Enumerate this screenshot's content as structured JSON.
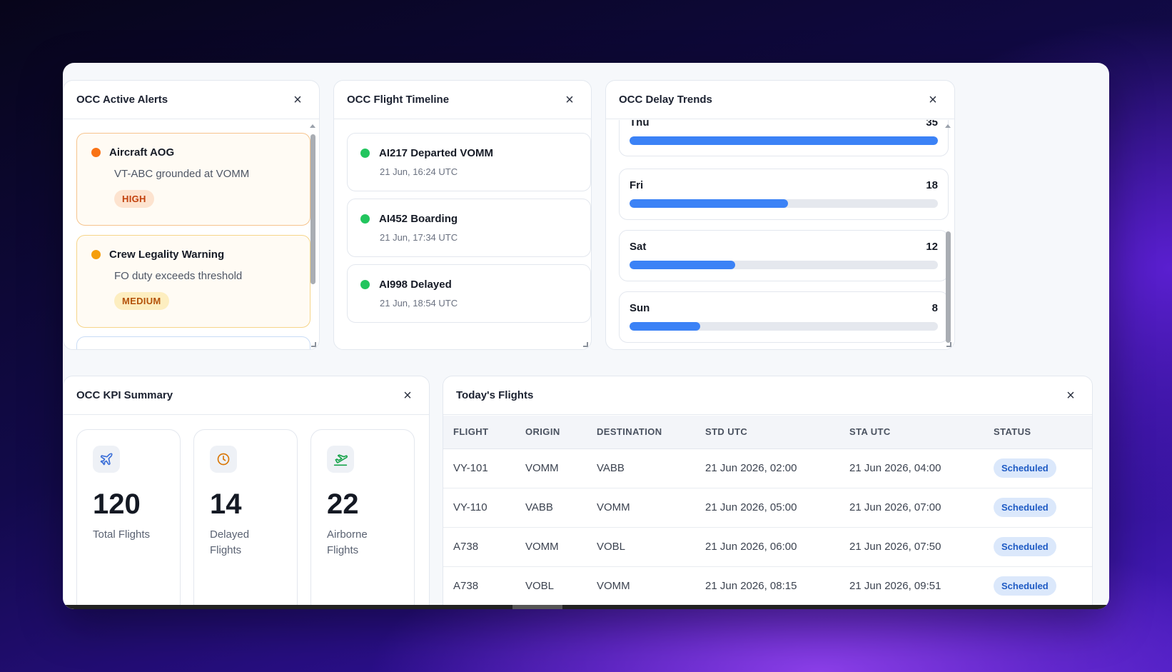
{
  "alerts_panel": {
    "title": "OCC Active Alerts",
    "items": [
      {
        "title": "Aircraft AOG",
        "subtitle": "VT-ABC grounded at VOMM",
        "severity": "HIGH",
        "dot_color": "#f97316",
        "badge_bg": "#fde3cf",
        "badge_color": "#c2410c"
      },
      {
        "title": "Crew Legality Warning",
        "subtitle": "FO duty exceeds threshold",
        "severity": "MEDIUM",
        "dot_color": "#f59e0b",
        "badge_bg": "#fdeec0",
        "badge_color": "#b45309"
      }
    ]
  },
  "timeline_panel": {
    "title": "OCC Flight Timeline",
    "items": [
      {
        "title": "AI217 Departed VOMM",
        "time": "21 Jun, 16:24 UTC"
      },
      {
        "title": "AI452 Boarding",
        "time": "21 Jun, 17:34 UTC"
      },
      {
        "title": "AI998 Delayed",
        "time": "21 Jun, 18:54 UTC"
      }
    ],
    "dot_color": "#22c55e"
  },
  "delay_panel": {
    "title": "OCC Delay Trends",
    "max": 35,
    "items": [
      {
        "day": "Thu",
        "value": 35
      },
      {
        "day": "Fri",
        "value": 18
      },
      {
        "day": "Sat",
        "value": 12
      },
      {
        "day": "Sun",
        "value": 8
      }
    ]
  },
  "kpi_panel": {
    "title": "OCC KPI Summary",
    "items": [
      {
        "value": "120",
        "label": "Total Flights",
        "icon": "plane-icon"
      },
      {
        "value": "14",
        "label": "Delayed Flights",
        "icon": "clock-icon"
      },
      {
        "value": "22",
        "label": "Airborne Flights",
        "icon": "takeoff-icon"
      }
    ]
  },
  "flights_panel": {
    "title": "Today's Flights",
    "columns": [
      "FLIGHT",
      "ORIGIN",
      "DESTINATION",
      "STD UTC",
      "STA UTC",
      "STATUS"
    ],
    "rows": [
      [
        "VY-101",
        "VOMM",
        "VABB",
        "21 Jun 2026, 02:00",
        "21 Jun 2026, 04:00",
        "Scheduled"
      ],
      [
        "VY-110",
        "VABB",
        "VOMM",
        "21 Jun 2026, 05:00",
        "21 Jun 2026, 07:00",
        "Scheduled"
      ],
      [
        "A738",
        "VOMM",
        "VOBL",
        "21 Jun 2026, 06:00",
        "21 Jun 2026, 07:50",
        "Scheduled"
      ],
      [
        "A738",
        "VOBL",
        "VOMM",
        "21 Jun 2026, 08:15",
        "21 Jun 2026, 09:51",
        "Scheduled"
      ]
    ]
  },
  "close_glyph": "×"
}
